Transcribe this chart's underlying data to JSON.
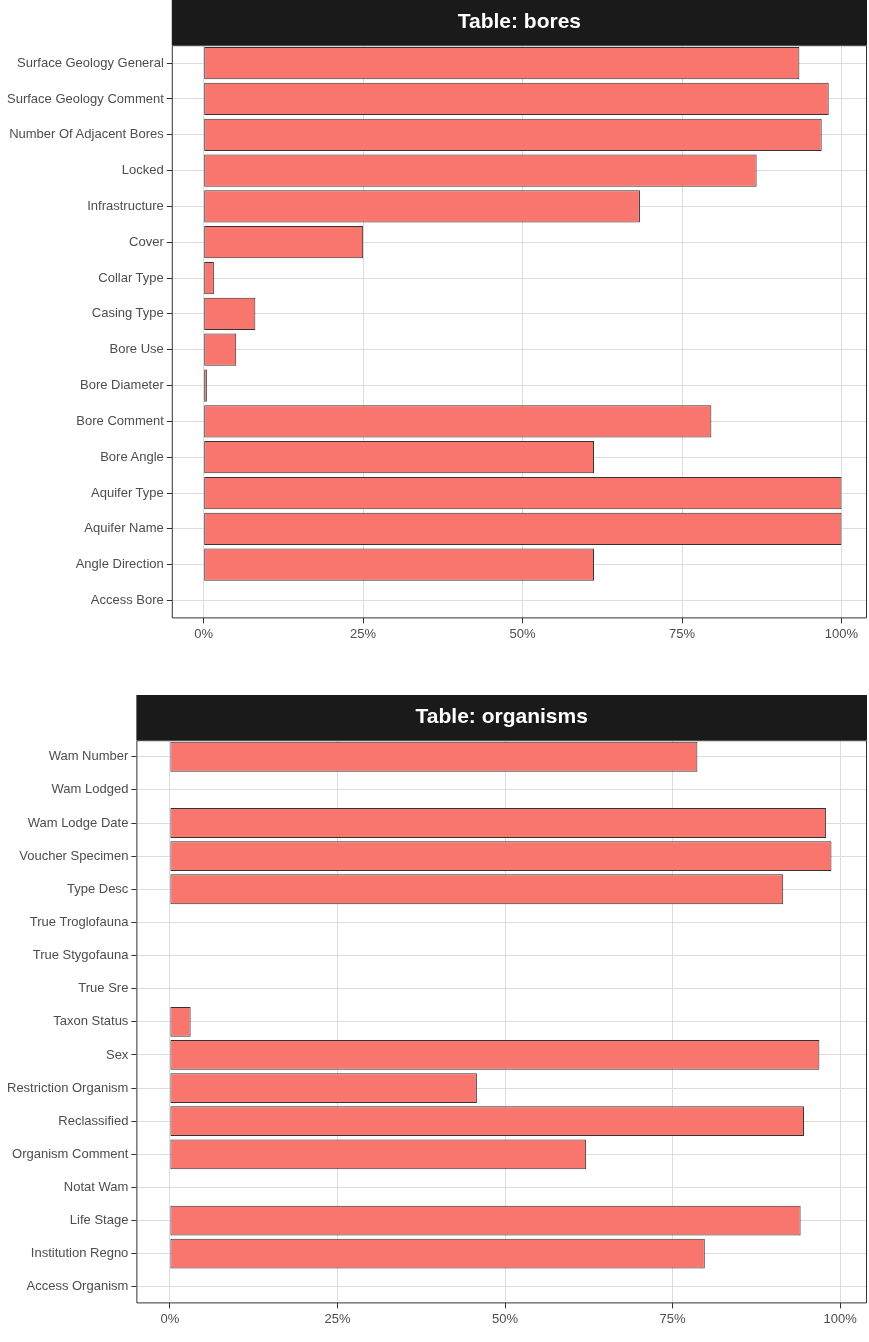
{
  "chart_data": [
    {
      "type": "bar",
      "orientation": "horizontal",
      "title": "Table: bores",
      "categories": [
        "Surface Geology General",
        "Surface Geology Comment",
        "Number Of Adjacent Bores",
        "Locked",
        "Infrastructure",
        "Cover",
        "Collar Type",
        "Casing Type",
        "Bore Use",
        "Bore Diameter",
        "Bore Comment",
        "Bore Angle",
        "Aquifer Type",
        "Aquifer Name",
        "Angle Direction",
        "Access Bore"
      ],
      "values": [
        93.4,
        98.0,
        96.9,
        86.7,
        68.4,
        25.0,
        1.6,
        8.1,
        5.1,
        0.5,
        79.6,
        61.2,
        100,
        100,
        61.2,
        0
      ],
      "color": "#f8766d",
      "xlim": [
        -5,
        104
      ],
      "xticks": [
        {
          "value": 0,
          "label": "0%"
        },
        {
          "value": 25,
          "label": "25%"
        },
        {
          "value": 50,
          "label": "50%"
        },
        {
          "value": 75,
          "label": "75%"
        },
        {
          "value": 100,
          "label": "100%"
        }
      ],
      "grid": true
    },
    {
      "type": "bar",
      "orientation": "horizontal",
      "title": "Table: organisms",
      "categories": [
        "Wam Number",
        "Wam Lodged",
        "Wam Lodge Date",
        "Voucher Specimen",
        "Type Desc",
        "True Troglofauna",
        "True Stygofauna",
        "True Sre",
        "Taxon Status",
        "Sex",
        "Restriction Organism",
        "Reclassified",
        "Organism Comment",
        "Notat Wam",
        "Life Stage",
        "Institution Regno",
        "Access Organism"
      ],
      "values": [
        78.7,
        0,
        97.9,
        98.7,
        91.5,
        0,
        0,
        0,
        3.1,
        96.9,
        45.8,
        94.6,
        62.1,
        0,
        94.1,
        79.8,
        0
      ],
      "color": "#f8766d",
      "xlim": [
        -5,
        104
      ],
      "xticks": [
        {
          "value": 0,
          "label": "0%"
        },
        {
          "value": 25,
          "label": "25%"
        },
        {
          "value": 50,
          "label": "50%"
        },
        {
          "value": 75,
          "label": "75%"
        },
        {
          "value": 100,
          "label": "100%"
        }
      ],
      "grid": true
    }
  ]
}
